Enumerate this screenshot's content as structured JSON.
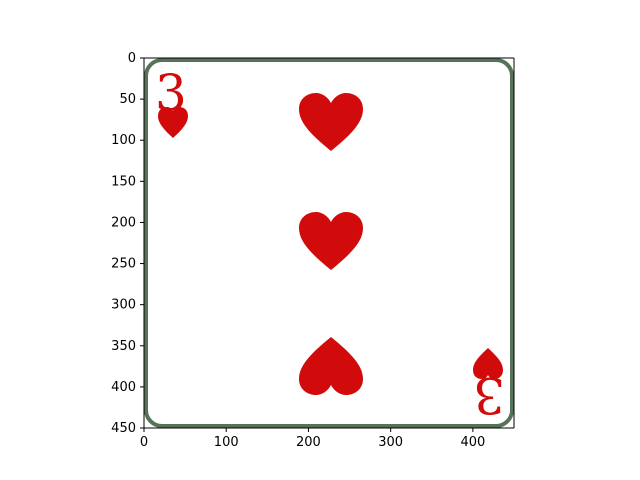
{
  "figure": {
    "title": "",
    "xlabel": "",
    "ylabel": "",
    "x_ticks": [
      "0",
      "100",
      "200",
      "300",
      "400"
    ],
    "y_ticks": [
      "0",
      "50",
      "100",
      "150",
      "200",
      "250",
      "300",
      "350",
      "400",
      "450"
    ],
    "x_range": [
      0,
      450
    ],
    "y_range": [
      0,
      450
    ]
  },
  "card": {
    "rank_top": "3",
    "rank_bottom": "3",
    "suit": "hearts",
    "pip_count": 3,
    "colors": {
      "red": "#d10b0b",
      "border": "#1e4320",
      "background": "#ffffff"
    }
  },
  "icons": {
    "suit_icon": "heart-icon"
  }
}
